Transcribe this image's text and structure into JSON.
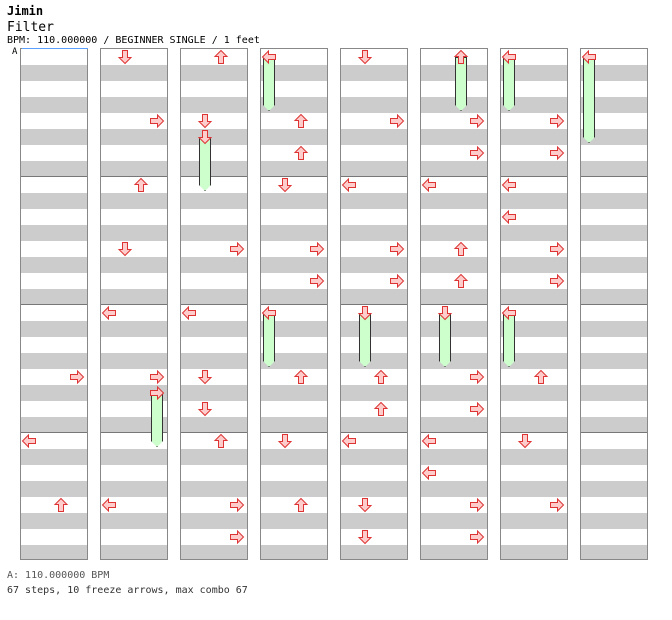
{
  "header": {
    "artist": "Jimin",
    "title": "Filter",
    "meta": "BPM: 110.000000 / BEGINNER SINGLE / 1 feet",
    "bpm_marker": "A"
  },
  "footer": {
    "bpm_line": "A: 110.000000 BPM",
    "stats": "67 steps, 10 freeze arrows, max combo 67"
  },
  "colors": {
    "arrow_fill": "#ffcccc",
    "arrow_stroke": "#dd3333",
    "freeze_fill": "#ccffcc",
    "row_gray": "#cccccc"
  },
  "chart": {
    "columns": 8,
    "measures_per_column": 4,
    "rows_per_measure": 4,
    "lanes": [
      "left",
      "down",
      "up",
      "right"
    ],
    "notes": [
      {
        "col": 0,
        "row": 20,
        "lane": "right"
      },
      {
        "col": 0,
        "row": 24,
        "lane": "left"
      },
      {
        "col": 0,
        "row": 28,
        "lane": "up"
      },
      {
        "col": 1,
        "row": 0,
        "lane": "down"
      },
      {
        "col": 1,
        "row": 4,
        "lane": "right"
      },
      {
        "col": 1,
        "row": 8,
        "lane": "up"
      },
      {
        "col": 1,
        "row": 12,
        "lane": "down"
      },
      {
        "col": 1,
        "row": 16,
        "lane": "left"
      },
      {
        "col": 1,
        "row": 20,
        "lane": "right"
      },
      {
        "col": 1,
        "row": 21,
        "lane": "right"
      },
      {
        "col": 1,
        "row": 28,
        "lane": "left"
      },
      {
        "col": 2,
        "row": 0,
        "lane": "up"
      },
      {
        "col": 2,
        "row": 4,
        "lane": "down"
      },
      {
        "col": 2,
        "row": 5,
        "lane": "down"
      },
      {
        "col": 2,
        "row": 12,
        "lane": "right"
      },
      {
        "col": 2,
        "row": 16,
        "lane": "left"
      },
      {
        "col": 2,
        "row": 20,
        "lane": "down"
      },
      {
        "col": 2,
        "row": 22,
        "lane": "down"
      },
      {
        "col": 2,
        "row": 24,
        "lane": "up"
      },
      {
        "col": 2,
        "row": 28,
        "lane": "right"
      },
      {
        "col": 2,
        "row": 30,
        "lane": "right"
      },
      {
        "col": 3,
        "row": 0,
        "lane": "left"
      },
      {
        "col": 3,
        "row": 4,
        "lane": "up"
      },
      {
        "col": 3,
        "row": 6,
        "lane": "up"
      },
      {
        "col": 3,
        "row": 8,
        "lane": "down"
      },
      {
        "col": 3,
        "row": 12,
        "lane": "right"
      },
      {
        "col": 3,
        "row": 14,
        "lane": "right"
      },
      {
        "col": 3,
        "row": 16,
        "lane": "left"
      },
      {
        "col": 3,
        "row": 20,
        "lane": "up"
      },
      {
        "col": 3,
        "row": 24,
        "lane": "down"
      },
      {
        "col": 3,
        "row": 28,
        "lane": "up"
      },
      {
        "col": 4,
        "row": 0,
        "lane": "down"
      },
      {
        "col": 4,
        "row": 4,
        "lane": "right"
      },
      {
        "col": 4,
        "row": 8,
        "lane": "left"
      },
      {
        "col": 4,
        "row": 12,
        "lane": "right"
      },
      {
        "col": 4,
        "row": 14,
        "lane": "right"
      },
      {
        "col": 4,
        "row": 16,
        "lane": "down"
      },
      {
        "col": 4,
        "row": 20,
        "lane": "up"
      },
      {
        "col": 4,
        "row": 22,
        "lane": "up"
      },
      {
        "col": 4,
        "row": 24,
        "lane": "left"
      },
      {
        "col": 4,
        "row": 28,
        "lane": "down"
      },
      {
        "col": 4,
        "row": 30,
        "lane": "down"
      },
      {
        "col": 5,
        "row": 0,
        "lane": "up"
      },
      {
        "col": 5,
        "row": 4,
        "lane": "right"
      },
      {
        "col": 5,
        "row": 6,
        "lane": "right"
      },
      {
        "col": 5,
        "row": 8,
        "lane": "left"
      },
      {
        "col": 5,
        "row": 12,
        "lane": "up"
      },
      {
        "col": 5,
        "row": 14,
        "lane": "up"
      },
      {
        "col": 5,
        "row": 16,
        "lane": "down"
      },
      {
        "col": 5,
        "row": 20,
        "lane": "right"
      },
      {
        "col": 5,
        "row": 22,
        "lane": "right"
      },
      {
        "col": 5,
        "row": 24,
        "lane": "left"
      },
      {
        "col": 5,
        "row": 26,
        "lane": "left"
      },
      {
        "col": 5,
        "row": 28,
        "lane": "right"
      },
      {
        "col": 5,
        "row": 30,
        "lane": "right"
      },
      {
        "col": 6,
        "row": 0,
        "lane": "left"
      },
      {
        "col": 6,
        "row": 4,
        "lane": "right"
      },
      {
        "col": 6,
        "row": 6,
        "lane": "right"
      },
      {
        "col": 6,
        "row": 8,
        "lane": "left"
      },
      {
        "col": 6,
        "row": 10,
        "lane": "left"
      },
      {
        "col": 6,
        "row": 12,
        "lane": "right"
      },
      {
        "col": 6,
        "row": 14,
        "lane": "right"
      },
      {
        "col": 6,
        "row": 16,
        "lane": "left"
      },
      {
        "col": 6,
        "row": 20,
        "lane": "up"
      },
      {
        "col": 6,
        "row": 24,
        "lane": "down"
      },
      {
        "col": 6,
        "row": 28,
        "lane": "right"
      },
      {
        "col": 7,
        "row": 0,
        "lane": "left"
      }
    ],
    "freezes": [
      {
        "col": 1,
        "row": 21,
        "end": 24,
        "lane": "right"
      },
      {
        "col": 2,
        "row": 5,
        "end": 8,
        "lane": "down"
      },
      {
        "col": 3,
        "row": 0,
        "end": 3,
        "lane": "left"
      },
      {
        "col": 3,
        "row": 16,
        "end": 19,
        "lane": "left"
      },
      {
        "col": 4,
        "row": 16,
        "end": 19,
        "lane": "down"
      },
      {
        "col": 5,
        "row": 0,
        "end": 3,
        "lane": "up"
      },
      {
        "col": 5,
        "row": 16,
        "end": 19,
        "lane": "down"
      },
      {
        "col": 6,
        "row": 0,
        "end": 3,
        "lane": "left"
      },
      {
        "col": 6,
        "row": 16,
        "end": 19,
        "lane": "left"
      },
      {
        "col": 7,
        "row": 0,
        "end": 5,
        "lane": "left"
      }
    ]
  }
}
